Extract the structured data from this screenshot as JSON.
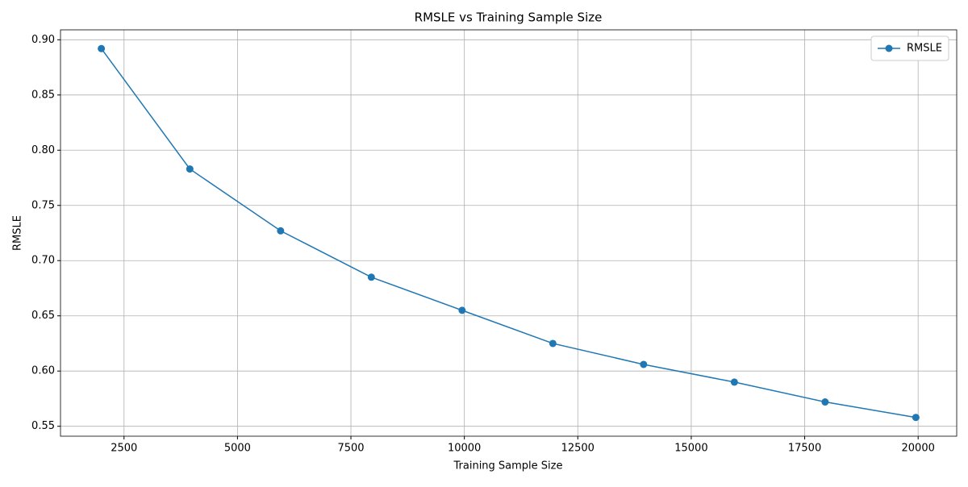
{
  "chart_data": {
    "type": "line",
    "title": "RMSLE vs Training Sample Size",
    "x_label": "Training Sample Size",
    "y_label": "RMSLE",
    "x": [
      2000,
      3950,
      5950,
      7950,
      9950,
      11950,
      13950,
      15950,
      17950,
      19950
    ],
    "series": [
      {
        "name": "RMSLE",
        "color": "#1f77b4",
        "values": [
          0.892,
          0.783,
          0.727,
          0.685,
          0.655,
          0.625,
          0.606,
          0.59,
          0.572,
          0.558
        ]
      }
    ],
    "xlim": [
      1100,
      20850
    ],
    "xticks": [
      2500,
      5000,
      7500,
      10000,
      12500,
      15000,
      17500,
      20000
    ],
    "ylim": [
      0.541,
      0.909
    ],
    "yticks": [
      0.55,
      {
        "value": 0.6,
        "label": "0.60"
      },
      0.65,
      {
        "value": 0.7,
        "label": "0.70"
      },
      0.75,
      {
        "value": 0.8,
        "label": "0.80"
      },
      0.85,
      {
        "value": 0.9,
        "label": "0.90"
      }
    ],
    "grid": true,
    "legend": "upper right"
  }
}
